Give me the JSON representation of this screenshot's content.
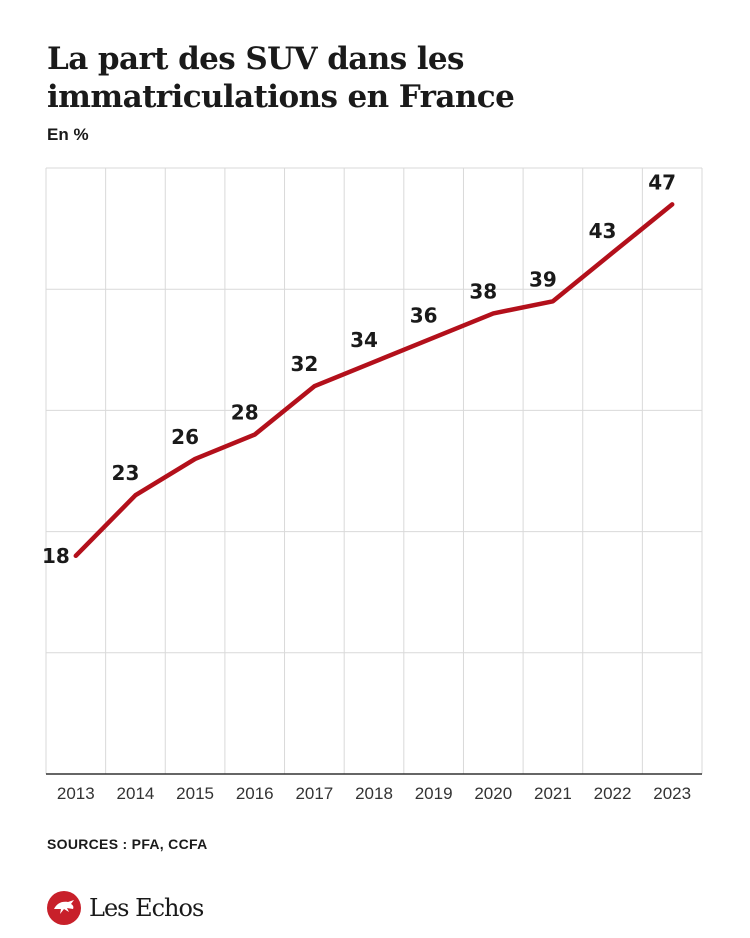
{
  "title": "La part des SUV dans les immatriculations en France",
  "subtitle": "En %",
  "source": "SOURCES : PFA, CCFA",
  "brand": {
    "name": "Les Echos",
    "logo_icon": "les-echos-logo-icon"
  },
  "colors": {
    "line": "#b3101b",
    "grid": "#d9d9d9",
    "axis": "#333333",
    "text": "#1a1a1a",
    "tick": "#333333"
  },
  "chart_data": {
    "type": "line",
    "title": "La part des SUV dans les immatriculations en France",
    "ylabel": "En %",
    "xlabel": "",
    "categories": [
      "2013",
      "2014",
      "2015",
      "2016",
      "2017",
      "2018",
      "2019",
      "2020",
      "2021",
      "2022",
      "2023"
    ],
    "series": [
      {
        "values": [
          18,
          23,
          26,
          28,
          32,
          34,
          36,
          38,
          39,
          43,
          47
        ]
      }
    ],
    "data_labels": [
      "18",
      "23",
      "26",
      "28",
      "32",
      "34",
      "36",
      "38",
      "39",
      "43",
      "47"
    ],
    "ylim": [
      0,
      50
    ],
    "grid": true,
    "legend": "none"
  }
}
